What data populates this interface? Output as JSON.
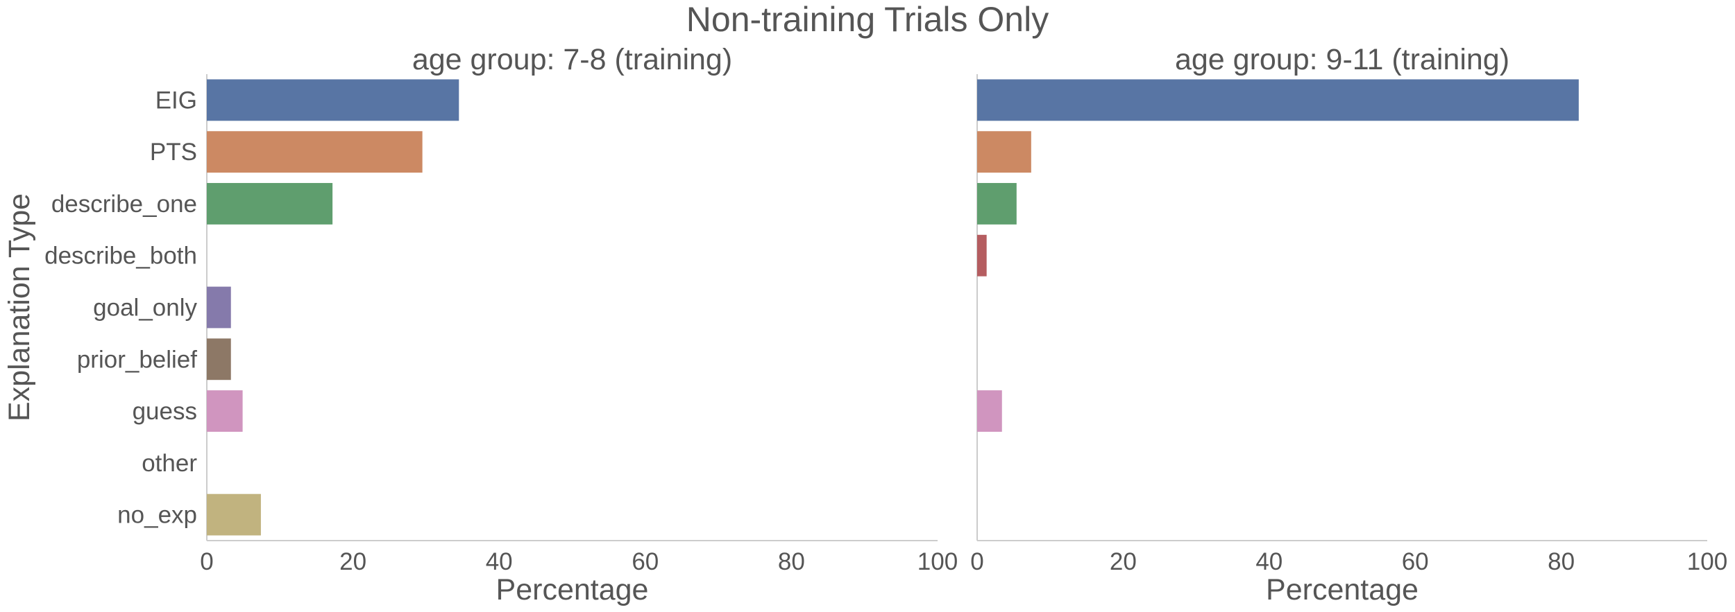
{
  "figure": {
    "suptitle": "Non-training Trials Only"
  },
  "chart_data": [
    {
      "type": "bar",
      "orientation": "horizontal",
      "title": "age group: 7-8 (training)",
      "xlabel": "Percentage",
      "ylabel": "Explanation Type",
      "xlim": [
        0,
        100
      ],
      "xticks": [
        0,
        20,
        40,
        60,
        80,
        100
      ],
      "grid": false,
      "legend": "none",
      "categories": [
        "EIG",
        "PTS",
        "describe_one",
        "describe_both",
        "goal_only",
        "prior_belief",
        "guess",
        "other",
        "no_exp"
      ],
      "values": [
        34.5,
        29.5,
        17.2,
        0,
        3.3,
        3.3,
        4.9,
        0,
        7.4
      ]
    },
    {
      "type": "bar",
      "orientation": "horizontal",
      "title": "age group: 9-11 (training)",
      "xlabel": "Percentage",
      "ylabel": "",
      "xlim": [
        0,
        100
      ],
      "xticks": [
        0,
        20,
        40,
        60,
        80,
        100
      ],
      "grid": false,
      "legend": "none",
      "categories": [
        "EIG",
        "PTS",
        "describe_one",
        "describe_both",
        "goal_only",
        "prior_belief",
        "guess",
        "other",
        "no_exp"
      ],
      "values": [
        82.4,
        7.4,
        5.4,
        1.3,
        0,
        0,
        3.4,
        0,
        0
      ]
    }
  ],
  "category_colors": [
    "#5875a4",
    "#cc8963",
    "#5f9e6e",
    "#b55d60",
    "#857aab",
    "#8d7866",
    "#d095bf",
    "#8c8c8c",
    "#c1b37f"
  ]
}
